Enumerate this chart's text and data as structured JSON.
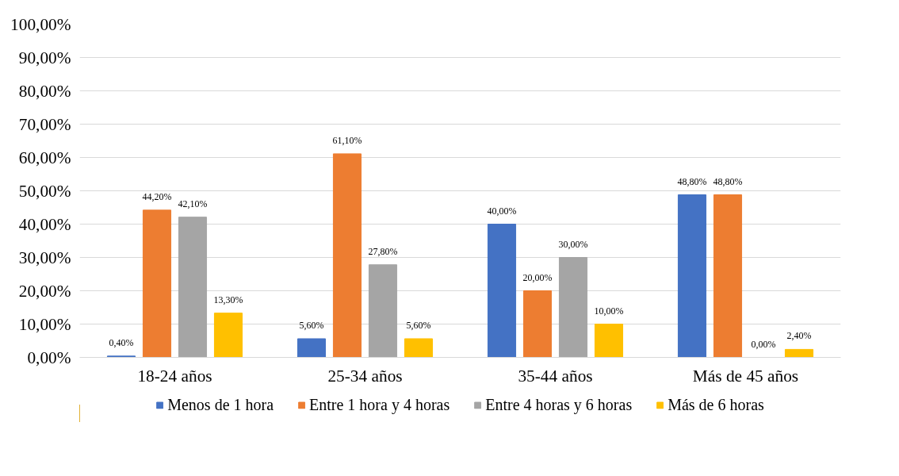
{
  "chart_data": {
    "type": "bar",
    "categories": [
      "18-24 años",
      "25-34 años",
      "35-44 años",
      "Más de 45 años"
    ],
    "series": [
      {
        "name": "Menos de 1 hora",
        "color": "#4472c4",
        "values": [
          0.4,
          5.6,
          40.0,
          48.8
        ],
        "value_labels": [
          "0,40%",
          "5,60%",
          "40,00%",
          "48,80%"
        ]
      },
      {
        "name": "Entre 1 hora y 4 horas",
        "color": "#ed7d31",
        "values": [
          44.2,
          61.1,
          20.0,
          48.8
        ],
        "value_labels": [
          "44,20%",
          "61,10%",
          "20,00%",
          "48,80%"
        ]
      },
      {
        "name": "Entre 4 horas y 6 horas",
        "color": "#a5a5a5",
        "values": [
          42.1,
          27.8,
          30.0,
          0.0
        ],
        "value_labels": [
          "42,10%",
          "27,80%",
          "30,00%",
          "0,00%"
        ]
      },
      {
        "name": "Más de 6 horas",
        "color": "#ffc000",
        "values": [
          13.3,
          5.6,
          10.0,
          2.4
        ],
        "value_labels": [
          "13,30%",
          "5,60%",
          "10,00%",
          "2,40%"
        ]
      }
    ],
    "ylim": [
      0,
      100
    ],
    "yticks": [
      {
        "value": 0,
        "label": "0,00%"
      },
      {
        "value": 10,
        "label": "10,00%"
      },
      {
        "value": 20,
        "label": "20,00%"
      },
      {
        "value": 30,
        "label": "30,00%"
      },
      {
        "value": 40,
        "label": "40,00%"
      },
      {
        "value": 50,
        "label": "50,00%"
      },
      {
        "value": 60,
        "label": "60,00%"
      },
      {
        "value": 70,
        "label": "70,00%"
      },
      {
        "value": 80,
        "label": "80,00%"
      },
      {
        "value": 90,
        "label": "90,00%"
      },
      {
        "value": 100,
        "label": "100,00%"
      }
    ],
    "grid": "y",
    "legend": "bottom"
  }
}
